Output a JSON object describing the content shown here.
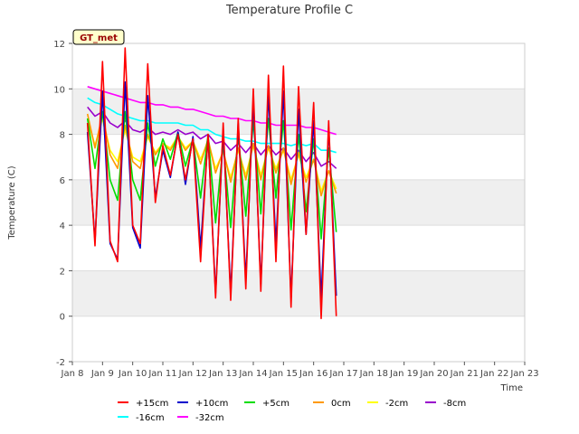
{
  "chart_data": {
    "type": "line",
    "title": "Temperature Profile C",
    "xlabel": "Time",
    "ylabel": "Temperature (C)",
    "badge": "GT_met",
    "grid": true,
    "legend_position": "bottom",
    "ylim": [
      -2,
      12
    ],
    "yticks": [
      -2,
      0,
      2,
      4,
      6,
      8,
      10,
      12
    ],
    "xlim": [
      "2021-01-08",
      "2021-01-23"
    ],
    "xticks": [
      "Jan 8",
      "Jan 9",
      "Jan 10",
      "Jan 11",
      "Jan 12",
      "Jan 13",
      "Jan 14",
      "Jan 15",
      "Jan 16",
      "Jan 17",
      "Jan 18",
      "Jan 19",
      "Jan 20",
      "Jan 21",
      "Jan 22",
      "Jan 23"
    ],
    "x": [
      "2021-01-08T12:00",
      "2021-01-08T18:00",
      "2021-01-09T00:00",
      "2021-01-09T06:00",
      "2021-01-09T12:00",
      "2021-01-09T18:00",
      "2021-01-10T00:00",
      "2021-01-10T06:00",
      "2021-01-10T12:00",
      "2021-01-10T18:00",
      "2021-01-11T00:00",
      "2021-01-11T06:00",
      "2021-01-11T12:00",
      "2021-01-11T18:00",
      "2021-01-12T00:00",
      "2021-01-12T06:00",
      "2021-01-12T12:00",
      "2021-01-12T18:00",
      "2021-01-13T00:00",
      "2021-01-13T06:00",
      "2021-01-13T12:00",
      "2021-01-13T18:00",
      "2021-01-14T00:00",
      "2021-01-14T06:00",
      "2021-01-14T12:00",
      "2021-01-14T18:00",
      "2021-01-15T00:00",
      "2021-01-15T06:00",
      "2021-01-15T12:00",
      "2021-01-15T18:00",
      "2021-01-16T00:00",
      "2021-01-16T06:00",
      "2021-01-16T12:00",
      "2021-01-16T18:00",
      "2021-01-17T00:00",
      "2021-01-17T06:00",
      "2021-01-17T12:00",
      "2021-01-17T18:00",
      "2021-01-18T00:00",
      "2021-01-18T06:00",
      "2021-01-18T12:00",
      "2021-01-18T18:00",
      "2021-01-19T00:00",
      "2021-01-19T06:00",
      "2021-01-19T12:00",
      "2021-01-19T18:00",
      "2021-01-20T00:00",
      "2021-01-20T06:00",
      "2021-01-20T12:00",
      "2021-01-20T18:00",
      "2021-01-21T00:00",
      "2021-01-21T06:00",
      "2021-01-21T12:00",
      "2021-01-21T18:00",
      "2021-01-22T00:00",
      "2021-01-22T06:00",
      "2021-01-22T12:00"
    ],
    "series": [
      {
        "name": "+15cm",
        "color": "#ff0000",
        "values": [
          8.5,
          3.1,
          11.2,
          3.3,
          2.4,
          11.8,
          4.0,
          3.2,
          11.1,
          5.0,
          7.5,
          6.2,
          8.0,
          6.0,
          7.8,
          2.4,
          8.0,
          0.8,
          8.5,
          0.7,
          8.7,
          1.2,
          10.0,
          1.1,
          10.6,
          2.4,
          11.0,
          0.4,
          10.1,
          3.6,
          9.4,
          -0.1,
          8.6,
          0.0,
          null,
          null,
          null,
          null,
          null,
          null,
          null,
          null,
          null,
          null,
          null,
          null,
          null,
          null,
          null,
          null,
          null,
          null,
          null,
          null,
          null,
          null,
          null
        ]
      },
      {
        "name": "+10cm",
        "color": "#0000cc",
        "values": [
          8.1,
          3.3,
          9.9,
          3.2,
          2.5,
          10.3,
          3.9,
          3.0,
          9.7,
          5.2,
          7.3,
          6.1,
          8.1,
          5.8,
          7.9,
          3.0,
          7.9,
          1.0,
          8.2,
          1.0,
          8.5,
          1.6,
          9.5,
          1.4,
          9.8,
          3.2,
          9.9,
          0.8,
          9.1,
          3.6,
          8.6,
          0.8,
          8.3,
          0.9,
          null,
          null,
          null,
          null,
          null,
          null,
          null,
          null,
          null,
          null,
          null,
          null,
          null,
          null,
          null,
          null,
          null,
          null,
          null,
          null,
          null,
          null,
          null
        ]
      },
      {
        "name": "+5cm",
        "color": "#00dd00",
        "values": [
          8.7,
          6.5,
          9.0,
          6.0,
          5.1,
          9.0,
          6.0,
          5.1,
          8.5,
          6.6,
          7.8,
          6.9,
          8.1,
          6.6,
          7.8,
          5.2,
          8.0,
          4.1,
          7.6,
          3.9,
          8.0,
          4.4,
          8.6,
          4.5,
          8.7,
          5.2,
          8.6,
          3.8,
          8.0,
          4.6,
          7.8,
          3.4,
          7.4,
          3.7,
          null,
          null,
          null,
          null,
          null,
          null,
          null,
          null,
          null,
          null,
          null,
          null,
          null,
          null,
          null,
          null,
          null,
          null,
          null,
          null,
          null,
          null,
          null
        ]
      },
      {
        "name": "0cm",
        "color": "#ff9900",
        "values": [
          8.9,
          7.4,
          8.9,
          7.1,
          6.5,
          8.4,
          6.8,
          6.5,
          8.0,
          7.1,
          7.6,
          7.3,
          7.9,
          7.3,
          7.7,
          6.7,
          7.8,
          6.3,
          7.3,
          5.9,
          7.4,
          6.0,
          7.6,
          6.0,
          7.5,
          6.3,
          7.4,
          5.8,
          7.2,
          5.9,
          6.9,
          5.3,
          6.4,
          5.4,
          null,
          null,
          null,
          null,
          null,
          null,
          null,
          null,
          null,
          null,
          null,
          null,
          null,
          null,
          null,
          null,
          null,
          null,
          null,
          null,
          null,
          null,
          null
        ]
      },
      {
        "name": "-2cm",
        "color": "#ffff00",
        "values": [
          8.7,
          7.5,
          8.7,
          7.3,
          6.8,
          8.2,
          7.0,
          6.8,
          7.9,
          7.2,
          7.6,
          7.4,
          7.9,
          7.4,
          7.7,
          6.9,
          7.7,
          6.5,
          7.2,
          6.1,
          7.3,
          6.2,
          7.5,
          6.2,
          7.4,
          6.5,
          7.3,
          6.0,
          7.1,
          6.1,
          6.9,
          5.5,
          6.4,
          5.6,
          null,
          null,
          null,
          null,
          null,
          null,
          null,
          null,
          null,
          null,
          null,
          null,
          null,
          null,
          null,
          null,
          null,
          null,
          null,
          null,
          null,
          null,
          null
        ]
      },
      {
        "name": "-8cm",
        "color": "#9900cc",
        "values": [
          9.2,
          8.8,
          9.0,
          8.5,
          8.3,
          8.6,
          8.2,
          8.1,
          8.3,
          8.0,
          8.1,
          8.0,
          8.2,
          8.0,
          8.1,
          7.8,
          8.0,
          7.6,
          7.7,
          7.3,
          7.6,
          7.2,
          7.6,
          7.1,
          7.5,
          7.1,
          7.4,
          6.9,
          7.3,
          6.8,
          7.2,
          6.6,
          6.8,
          6.5,
          null,
          null,
          null,
          null,
          null,
          null,
          null,
          null,
          null,
          null,
          null,
          null,
          null,
          null,
          null,
          null,
          null,
          null,
          null,
          null,
          null,
          null,
          null
        ]
      },
      {
        "name": "-16cm",
        "color": "#00ffff",
        "values": [
          9.6,
          9.4,
          9.3,
          9.1,
          8.9,
          8.8,
          8.7,
          8.6,
          8.6,
          8.5,
          8.5,
          8.5,
          8.5,
          8.4,
          8.4,
          8.2,
          8.2,
          8.0,
          7.9,
          7.8,
          7.8,
          7.7,
          7.7,
          7.6,
          7.6,
          7.6,
          7.6,
          7.5,
          7.6,
          7.5,
          7.6,
          7.3,
          7.3,
          7.2,
          null,
          null,
          null,
          null,
          null,
          null,
          null,
          null,
          null,
          null,
          null,
          null,
          null,
          null,
          null,
          null,
          null,
          null,
          null,
          null,
          null,
          null,
          null
        ]
      },
      {
        "name": "-32cm",
        "color": "#ff00ff",
        "values": [
          10.1,
          10.0,
          9.9,
          9.8,
          9.7,
          9.6,
          9.5,
          9.4,
          9.4,
          9.3,
          9.3,
          9.2,
          9.2,
          9.1,
          9.1,
          9.0,
          8.9,
          8.8,
          8.8,
          8.7,
          8.7,
          8.6,
          8.6,
          8.5,
          8.5,
          8.4,
          8.4,
          8.4,
          8.4,
          8.3,
          8.3,
          8.2,
          8.1,
          8.0,
          null,
          null,
          null,
          null,
          null,
          null,
          null,
          null,
          null,
          null,
          null,
          null,
          null,
          null,
          null,
          null,
          null,
          null,
          null,
          null,
          null,
          null,
          null
        ]
      }
    ]
  }
}
